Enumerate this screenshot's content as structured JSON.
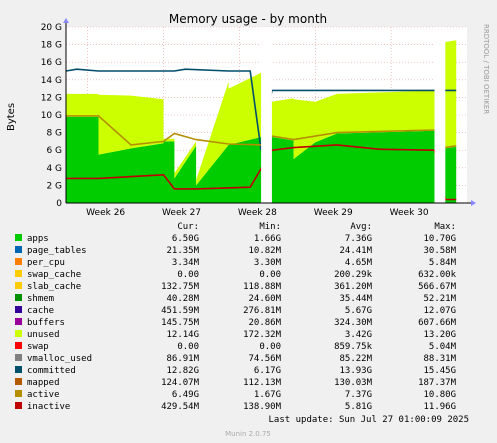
{
  "chart_data": {
    "type": "area",
    "title": "Memory usage - by month",
    "ylabel": "Bytes",
    "side_label": "RRDTOOL / TOBI OETIKER",
    "ylim": [
      0,
      20
    ],
    "y_unit": "G",
    "yticks": [
      "0",
      "2 G",
      "4 G",
      "6 G",
      "8 G",
      "10 G",
      "12 G",
      "14 G",
      "16 G",
      "18 G",
      "20 G"
    ],
    "x_range": [
      "2025-06-21",
      "2025-07-28"
    ],
    "xticks": [
      {
        "label": "Week 26",
        "date": "2025-06-23"
      },
      {
        "label": "Week 27",
        "date": "2025-06-30"
      },
      {
        "label": "Week 28",
        "date": "2025-07-07"
      },
      {
        "label": "Week 29",
        "date": "2025-07-14"
      },
      {
        "label": "Week 30",
        "date": "2025-07-21"
      }
    ],
    "gaps": [
      [
        "2025-07-09",
        "2025-07-10"
      ],
      [
        "2025-07-25",
        "2025-07-26"
      ]
    ],
    "stack_samples": {
      "dates": [
        "2025-06-21",
        "2025-06-24",
        "2025-06-24",
        "2025-06-27",
        "2025-06-30",
        "2025-06-30",
        "2025-07-01",
        "2025-07-01",
        "2025-07-03",
        "2025-07-03",
        "2025-07-06",
        "2025-07-06",
        "2025-07-09",
        "2025-07-10",
        "2025-07-12",
        "2025-07-12",
        "2025-07-14",
        "2025-07-16",
        "2025-07-25",
        "2025-07-26",
        "2025-07-27"
      ],
      "series": [
        {
          "name": "apps",
          "values": [
            9.8,
            9.8,
            5.5,
            6.2,
            6.8,
            7.0,
            7.0,
            2.8,
            6.5,
            2.0,
            6.6,
            6.6,
            7.5,
            7.5,
            7.1,
            5.0,
            6.9,
            7.9,
            8.2,
            6.2,
            6.4
          ]
        },
        {
          "name": "unused",
          "values": [
            2.6,
            2.6,
            6.8,
            6.0,
            5.0,
            0.3,
            0.3,
            0.6,
            0.5,
            0.6,
            7.2,
            6.4,
            7.3,
            4.0,
            4.8,
            6.8,
            4.6,
            4.5,
            4.6,
            12.1,
            12.1
          ]
        }
      ]
    },
    "series": [
      {
        "name": "apps",
        "color": "#00cc00",
        "cur": "6.50G",
        "min": "1.66G",
        "avg": "7.36G",
        "max": "10.70G"
      },
      {
        "name": "page_tables",
        "color": "#0066b3",
        "cur": "21.35M",
        "min": "10.82M",
        "avg": "24.41M",
        "max": "30.58M"
      },
      {
        "name": "per_cpu",
        "color": "#ff8000",
        "cur": "3.34M",
        "min": "3.30M",
        "avg": "4.65M",
        "max": "5.84M"
      },
      {
        "name": "swap_cache",
        "color": "#ffcc00",
        "cur": "0.00",
        "min": "0.00",
        "avg": "200.29k",
        "max": "632.00k"
      },
      {
        "name": "slab_cache",
        "color": "#ffcc00",
        "cur": "132.75M",
        "min": "118.88M",
        "avg": "361.20M",
        "max": "566.67M"
      },
      {
        "name": "shmem",
        "color": "#008f00",
        "cur": "40.28M",
        "min": "24.60M",
        "avg": "35.44M",
        "max": "52.21M"
      },
      {
        "name": "cache",
        "color": "#330099",
        "cur": "451.59M",
        "min": "276.81M",
        "avg": "5.67G",
        "max": "12.07G"
      },
      {
        "name": "buffers",
        "color": "#990099",
        "cur": "145.75M",
        "min": "20.86M",
        "avg": "324.30M",
        "max": "607.66M"
      },
      {
        "name": "unused",
        "color": "#ccff00",
        "cur": "12.14G",
        "min": "172.32M",
        "avg": "3.42G",
        "max": "13.20G"
      },
      {
        "name": "swap",
        "color": "#ff0000",
        "cur": "0.00",
        "min": "0.00",
        "avg": "859.75k",
        "max": "5.04M"
      },
      {
        "name": "vmalloc_used",
        "color": "#808080",
        "cur": "86.91M",
        "min": "74.56M",
        "avg": "85.22M",
        "max": "88.31M"
      },
      {
        "name": "committed",
        "color": "#004f6b",
        "cur": "12.82G",
        "min": "6.17G",
        "avg": "13.93G",
        "max": "15.45G"
      },
      {
        "name": "mapped",
        "color": "#b35900",
        "cur": "124.07M",
        "min": "112.13M",
        "avg": "130.03M",
        "max": "187.37M"
      },
      {
        "name": "active",
        "color": "#b38f00",
        "cur": "6.49G",
        "min": "1.67G",
        "avg": "7.37G",
        "max": "10.80G"
      },
      {
        "name": "inactive",
        "color": "#c00000",
        "cur": "429.54M",
        "min": "138.90M",
        "avg": "5.81G",
        "max": "11.96G"
      }
    ],
    "line_samples": {
      "committed": {
        "dates": [
          "2025-06-21",
          "2025-06-22",
          "2025-06-24",
          "2025-07-01",
          "2025-07-02",
          "2025-07-06",
          "2025-07-08",
          "2025-07-09",
          "2025-07-10",
          "2025-07-16",
          "2025-07-25",
          "2025-07-26",
          "2025-07-27"
        ],
        "values": [
          15.0,
          15.2,
          15.0,
          15.0,
          15.2,
          15.0,
          15.0,
          6.0,
          12.8,
          12.8,
          12.8,
          12.8,
          12.8
        ]
      },
      "inactive": {
        "dates": [
          "2025-06-21",
          "2025-06-24",
          "2025-06-27",
          "2025-06-30",
          "2025-07-01",
          "2025-07-03",
          "2025-07-08",
          "2025-07-10",
          "2025-07-12",
          "2025-07-16",
          "2025-07-20",
          "2025-07-25",
          "2025-07-26",
          "2025-07-27"
        ],
        "values": [
          2.8,
          2.8,
          3.0,
          3.2,
          1.6,
          1.6,
          1.8,
          6.0,
          6.3,
          6.6,
          6.1,
          6.0,
          0.4,
          0.4
        ]
      },
      "active": {
        "dates": [
          "2025-06-21",
          "2025-06-24",
          "2025-06-27",
          "2025-06-30",
          "2025-07-01",
          "2025-07-03",
          "2025-07-06",
          "2025-07-09",
          "2025-07-10",
          "2025-07-12",
          "2025-07-16",
          "2025-07-25",
          "2025-07-26",
          "2025-07-27"
        ],
        "values": [
          9.9,
          9.9,
          6.6,
          7.0,
          7.9,
          7.2,
          6.7,
          6.6,
          7.6,
          7.2,
          8.0,
          8.3,
          6.3,
          6.5
        ]
      }
    },
    "legend_headers": [
      "Cur:",
      "Min:",
      "Avg:",
      "Max:"
    ],
    "last_update": "Last update: Sun Jul 27 01:00:09 2025",
    "footer": "Munin 2.0.75"
  }
}
